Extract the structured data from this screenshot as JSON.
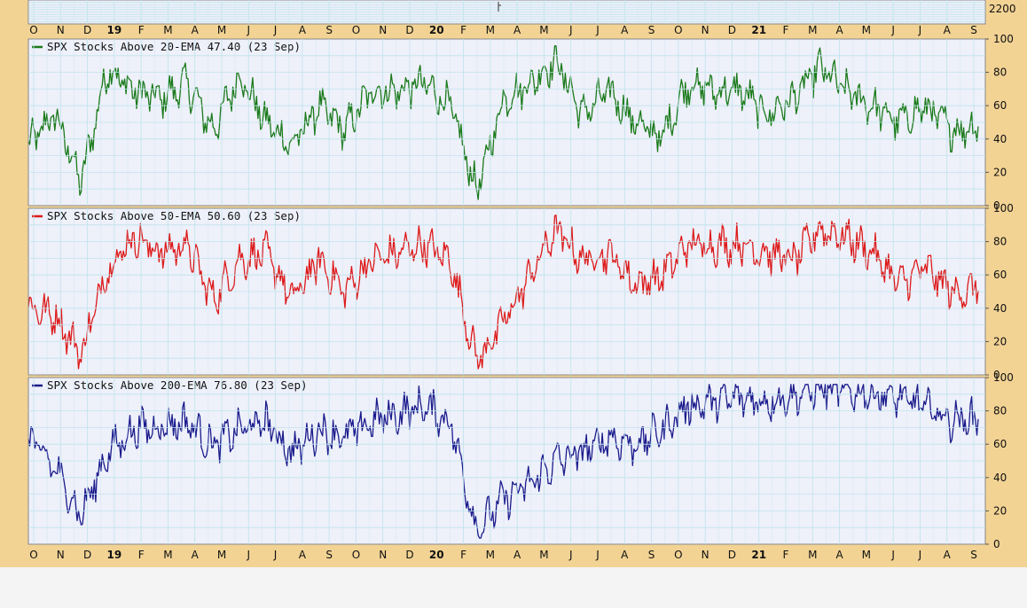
{
  "chart_data": [
    {
      "type": "line",
      "role": "price-panel-bottom-edge",
      "y_tick_labels": [
        "2200"
      ],
      "x_tick_labels": [
        "O",
        "N",
        "D",
        "19",
        "F",
        "M",
        "A",
        "M",
        "J",
        "J",
        "A",
        "S",
        "O",
        "N",
        "D",
        "20",
        "F",
        "M",
        "A",
        "M",
        "J",
        "J",
        "A",
        "S",
        "O",
        "N",
        "D",
        "21",
        "F",
        "M",
        "A",
        "M",
        "J",
        "J",
        "A",
        "S"
      ]
    },
    {
      "type": "line",
      "title": "SPX Stocks Above 20-EMA 47.40 (23 Sep)",
      "color": "#1a7a1a",
      "ylim": [
        0,
        100
      ],
      "y_ticks": [
        0,
        20,
        40,
        60,
        80,
        100
      ],
      "grid": true,
      "x_range": [
        "Oct 2018",
        "Sep 2021"
      ],
      "last_value": 47.4,
      "approx_monthly_values": {
        "x": [
          "Oct",
          "Nov",
          "Dec",
          "Jan",
          "Feb",
          "Mar",
          "Apr",
          "May",
          "Jun",
          "Jul",
          "Aug",
          "Sep",
          "Oct",
          "Nov",
          "Dec",
          "Jan",
          "Feb",
          "Mar",
          "Apr",
          "May",
          "Jun",
          "Jul",
          "Aug",
          "Sep",
          "Oct",
          "Nov",
          "Dec",
          "Jan",
          "Feb",
          "Mar",
          "Apr",
          "May",
          "Jun",
          "Jul",
          "Aug",
          "Sep"
        ],
        "values": [
          35,
          55,
          12,
          85,
          70,
          65,
          75,
          45,
          80,
          50,
          35,
          60,
          45,
          70,
          70,
          75,
          60,
          5,
          65,
          75,
          90,
          55,
          70,
          50,
          40,
          75,
          70,
          70,
          55,
          65,
          85,
          70,
          60,
          50,
          60,
          45
        ]
      }
    },
    {
      "type": "line",
      "title": "SPX Stocks Above 50-EMA 50.60 (23 Sep)",
      "color": "#dd1a1a",
      "ylim": [
        0,
        100
      ],
      "y_ticks": [
        0,
        20,
        40,
        60,
        80,
        100
      ],
      "grid": true,
      "x_range": [
        "Oct 2018",
        "Sep 2021"
      ],
      "last_value": 50.6,
      "approx_monthly_values": {
        "x": [
          "Oct",
          "Nov",
          "Dec",
          "Jan",
          "Feb",
          "Mar",
          "Apr",
          "May",
          "Jun",
          "Jul",
          "Aug",
          "Sep",
          "Oct",
          "Nov",
          "Dec",
          "Jan",
          "Feb",
          "Mar",
          "Apr",
          "May",
          "Jun",
          "Jul",
          "Aug",
          "Sep",
          "Oct",
          "Nov",
          "Dec",
          "Jan",
          "Feb",
          "Mar",
          "Apr",
          "May",
          "Jun",
          "Jul",
          "Aug",
          "Sep"
        ],
        "values": [
          40,
          35,
          10,
          65,
          85,
          75,
          80,
          45,
          70,
          75,
          45,
          70,
          50,
          70,
          75,
          80,
          70,
          5,
          30,
          60,
          90,
          70,
          75,
          55,
          60,
          80,
          80,
          80,
          75,
          70,
          90,
          85,
          75,
          55,
          65,
          50
        ]
      }
    },
    {
      "type": "line",
      "title": "SPX Stocks Above 200-EMA 76.80 (23 Sep)",
      "color": "#1a1a8c",
      "ylim": [
        0,
        100
      ],
      "y_ticks": [
        0,
        20,
        40,
        60,
        80,
        100
      ],
      "grid": true,
      "x_range": [
        "Oct 2018",
        "Sep 2021"
      ],
      "last_value": 76.8,
      "approx_monthly_values": {
        "x": [
          "Oct",
          "Nov",
          "Dec",
          "Jan",
          "Feb",
          "Mar",
          "Apr",
          "May",
          "Jun",
          "Jul",
          "Aug",
          "Sep",
          "Oct",
          "Nov",
          "Dec",
          "Jan",
          "Feb",
          "Mar",
          "Apr",
          "May",
          "Jun",
          "Jul",
          "Aug",
          "Sep",
          "Oct",
          "Nov",
          "Dec",
          "Jan",
          "Feb",
          "Mar",
          "Apr",
          "May",
          "Jun",
          "Jul",
          "Aug",
          "Sep"
        ],
        "values": [
          65,
          45,
          15,
          55,
          70,
          72,
          75,
          60,
          70,
          75,
          55,
          70,
          65,
          75,
          80,
          85,
          75,
          5,
          25,
          35,
          50,
          55,
          65,
          60,
          70,
          85,
          88,
          90,
          88,
          92,
          97,
          95,
          93,
          90,
          85,
          76
        ]
      }
    }
  ],
  "colors": {
    "frame": "#f2d394",
    "plot_bg": "#eef0fa",
    "grid": "#bfe4ec",
    "axis": "#888888"
  }
}
